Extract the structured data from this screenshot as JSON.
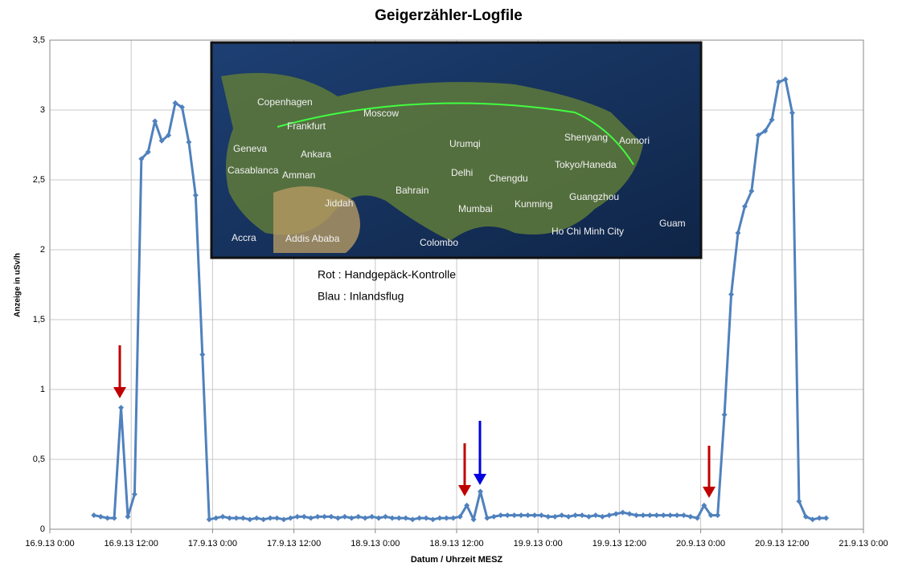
{
  "chart_data": {
    "type": "line",
    "title": "Geigerzähler-Logfile",
    "y_label": "Anzeige in uSv/h",
    "x_label": "Datum / Uhrzeit MESZ",
    "annotations": [
      "Rot : Handgepäck-Kontrolle",
      "Blau : Inlandsflug"
    ],
    "image_labels": [
      "Copenhagen",
      "Moscow",
      "Frankfurt",
      "Geneva",
      "Ankara",
      "Casablanca",
      "Amman",
      "Urumqi",
      "Shenyang",
      "Aomori",
      "Tokyo/Haneda",
      "Delhi",
      "Chengdu",
      "Bahrain",
      "Jiddah",
      "Mumbai",
      "Kunming",
      "Guangzhou",
      "Guam",
      "Accra",
      "Addis Ababa",
      "Colombo",
      "Ho Chi Minh City"
    ],
    "color": "#4f81bd",
    "grid": true,
    "x": [
      "16.9.13 6:30",
      "16.9.13 7:30",
      "16.9.13 8:30",
      "16.9.13 9:30",
      "16.9.13 10:30",
      "16.9.13 11:30",
      "16.9.13 12:30",
      "16.9.13 13:30",
      "16.9.13 14:30",
      "16.9.13 15:30",
      "16.9.13 16:30",
      "16.9.13 17:30",
      "16.9.13 18:30",
      "16.9.13 19:30",
      "16.9.13 20:30",
      "16.9.13 21:30",
      "16.9.13 22:30",
      "16.9.13 23:30",
      "17.9.13 0:30",
      "17.9.13 1:30",
      "17.9.13 2:30",
      "17.9.13 3:30",
      "17.9.13 4:30",
      "17.9.13 5:30",
      "17.9.13 6:30",
      "17.9.13 7:30",
      "17.9.13 8:30",
      "17.9.13 9:30",
      "17.9.13 10:30",
      "17.9.13 11:30",
      "17.9.13 12:30",
      "17.9.13 13:30",
      "17.9.13 14:30",
      "17.9.13 15:30",
      "17.9.13 16:30",
      "17.9.13 17:30",
      "17.9.13 18:30",
      "17.9.13 19:30",
      "17.9.13 20:30",
      "17.9.13 21:30",
      "17.9.13 22:30",
      "17.9.13 23:30",
      "18.9.13 0:30",
      "18.9.13 1:30",
      "18.9.13 2:30",
      "18.9.13 3:30",
      "18.9.13 4:30",
      "18.9.13 5:30",
      "18.9.13 6:30",
      "18.9.13 7:30",
      "18.9.13 8:30",
      "18.9.13 9:30",
      "18.9.13 10:30",
      "18.9.13 11:30",
      "18.9.13 12:30",
      "18.9.13 13:30",
      "18.9.13 14:30",
      "18.9.13 15:30",
      "18.9.13 16:30",
      "18.9.13 17:30",
      "18.9.13 18:30",
      "18.9.13 19:30",
      "18.9.13 20:30",
      "18.9.13 21:30",
      "18.9.13 22:30",
      "18.9.13 23:30",
      "19.9.13 0:30",
      "19.9.13 1:30",
      "19.9.13 2:30",
      "19.9.13 3:30",
      "19.9.13 4:30",
      "19.9.13 5:30",
      "19.9.13 6:30",
      "19.9.13 7:30",
      "19.9.13 8:30",
      "19.9.13 9:30",
      "19.9.13 10:30",
      "19.9.13 11:30",
      "19.9.13 12:30",
      "19.9.13 13:30",
      "19.9.13 14:30",
      "19.9.13 15:30",
      "19.9.13 16:30",
      "19.9.13 17:30",
      "19.9.13 18:30",
      "19.9.13 19:30",
      "19.9.13 20:30",
      "19.9.13 21:30",
      "19.9.13 22:30",
      "19.9.13 23:30",
      "20.9.13 0:30",
      "20.9.13 1:30",
      "20.9.13 2:30",
      "20.9.13 3:30",
      "20.9.13 4:30",
      "20.9.13 5:30",
      "20.9.13 6:30",
      "20.9.13 7:30",
      "20.9.13 8:30",
      "20.9.13 9:30",
      "20.9.13 10:30",
      "20.9.13 11:30",
      "20.9.13 12:30",
      "20.9.13 13:30",
      "20.9.13 14:30",
      "20.9.13 15:30",
      "20.9.13 16:30",
      "20.9.13 17:30",
      "20.9.13 18:30"
    ],
    "values": [
      0.1,
      0.09,
      0.08,
      0.08,
      0.87,
      0.09,
      0.25,
      2.65,
      2.7,
      2.92,
      2.78,
      2.82,
      3.05,
      3.02,
      2.77,
      2.39,
      1.25,
      0.07,
      0.08,
      0.09,
      0.08,
      0.08,
      0.08,
      0.07,
      0.08,
      0.07,
      0.08,
      0.08,
      0.07,
      0.08,
      0.09,
      0.09,
      0.08,
      0.09,
      0.09,
      0.09,
      0.08,
      0.09,
      0.08,
      0.09,
      0.08,
      0.09,
      0.08,
      0.09,
      0.08,
      0.08,
      0.08,
      0.07,
      0.08,
      0.08,
      0.07,
      0.08,
      0.08,
      0.08,
      0.09,
      0.17,
      0.07,
      0.27,
      0.08,
      0.09,
      0.1,
      0.1,
      0.1,
      0.1,
      0.1,
      0.1,
      0.1,
      0.09,
      0.09,
      0.1,
      0.09,
      0.1,
      0.1,
      0.09,
      0.1,
      0.09,
      0.1,
      0.11,
      0.12,
      0.11,
      0.1,
      0.1,
      0.1,
      0.1,
      0.1,
      0.1,
      0.1,
      0.1,
      0.09,
      0.08,
      0.17,
      0.1,
      0.1,
      0.82,
      1.68,
      2.12,
      2.31,
      2.42,
      2.82,
      2.85,
      2.93,
      3.2,
      3.22,
      2.98,
      0.2,
      0.09,
      0.07,
      0.08,
      0.08
    ],
    "xlim": [
      "16.9.13 0:00",
      "21.9.13 0:00"
    ],
    "xticks": [
      "16.9.13 0:00",
      "16.9.13 12:00",
      "17.9.13 0:00",
      "17.9.13 12:00",
      "18.9.13 0:00",
      "18.9.13 12:00",
      "19.9.13 0:00",
      "19.9.13 12:00",
      "20.9.13 0:00",
      "20.9.13 12:00",
      "21.9.13 0:00"
    ],
    "ylim": [
      0,
      3.5
    ],
    "yticks": [
      0,
      {
        "value": 0.5,
        "label": "0,5"
      },
      1,
      {
        "value": 1.5,
        "label": "1,5"
      },
      2,
      {
        "value": 2.5,
        "label": "2,5"
      },
      3,
      {
        "value": 3.5,
        "label": "3,5"
      }
    ]
  }
}
